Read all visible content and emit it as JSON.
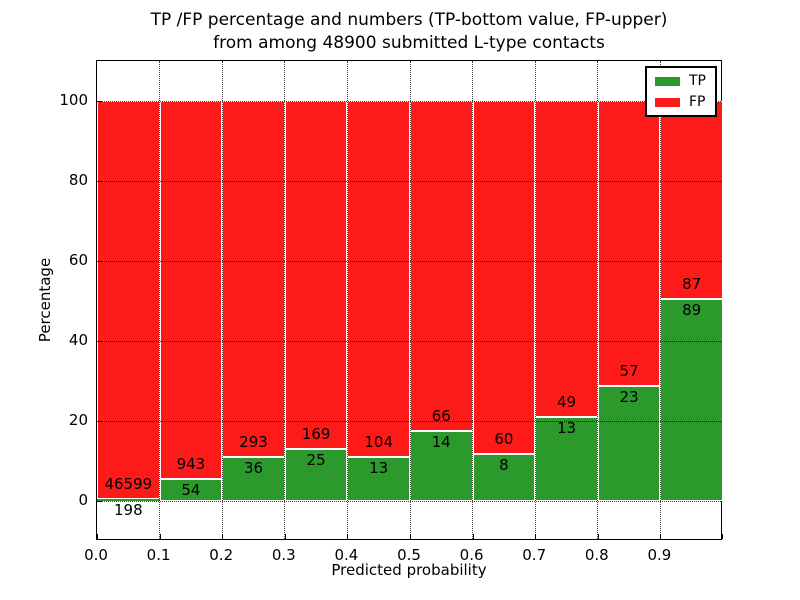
{
  "figure": {
    "title_line1": "TP /FP percentage and numbers (TP-bottom value, FP-upper)",
    "title_line2": "from among 48900 submitted L-type contacts",
    "background": "#ffffff"
  },
  "axes": {
    "xlabel": "Predicted probability",
    "ylabel": "Percentage",
    "xlim": [
      0.0,
      1.0
    ],
    "ylim": [
      -10,
      110
    ],
    "xtick_labels": [
      "0.0",
      "0.1",
      "0.2",
      "0.3",
      "0.4",
      "0.5",
      "0.6",
      "0.7",
      "0.8",
      "0.9"
    ],
    "ytick_values": [
      0,
      20,
      40,
      60,
      80,
      100
    ],
    "grid_style": "dotted"
  },
  "legend": {
    "position": "upper right",
    "entries": [
      {
        "label": "TP",
        "color": "#2b992b"
      },
      {
        "label": "FP",
        "color": "#ff1a1a"
      }
    ]
  },
  "chart_data": {
    "type": "bar",
    "stacked": true,
    "normalized_to_percent": 100,
    "title": "TP /FP percentage and numbers (TP-bottom value, FP-upper) from among 48900 submitted L-type contacts",
    "xlabel": "Predicted probability",
    "ylabel": "Percentage",
    "total_contacts": 48900,
    "bin_width": 0.1,
    "bin_starts": [
      0.0,
      0.1,
      0.2,
      0.3,
      0.4,
      0.5,
      0.6,
      0.7,
      0.8,
      0.9
    ],
    "series": [
      {
        "name": "TP",
        "color": "#2b992b",
        "counts": [
          198,
          54,
          36,
          25,
          13,
          14,
          8,
          13,
          23,
          89
        ]
      },
      {
        "name": "FP",
        "color": "#ff1a1a",
        "counts": [
          46599,
          943,
          293,
          169,
          104,
          66,
          60,
          49,
          57,
          87
        ]
      }
    ],
    "tp_percent_per_bin": [
      0.42,
      5.42,
      10.94,
      12.89,
      11.11,
      17.5,
      11.76,
      20.97,
      28.75,
      50.57
    ],
    "ylim": [
      -10,
      110
    ],
    "grid": "on"
  }
}
